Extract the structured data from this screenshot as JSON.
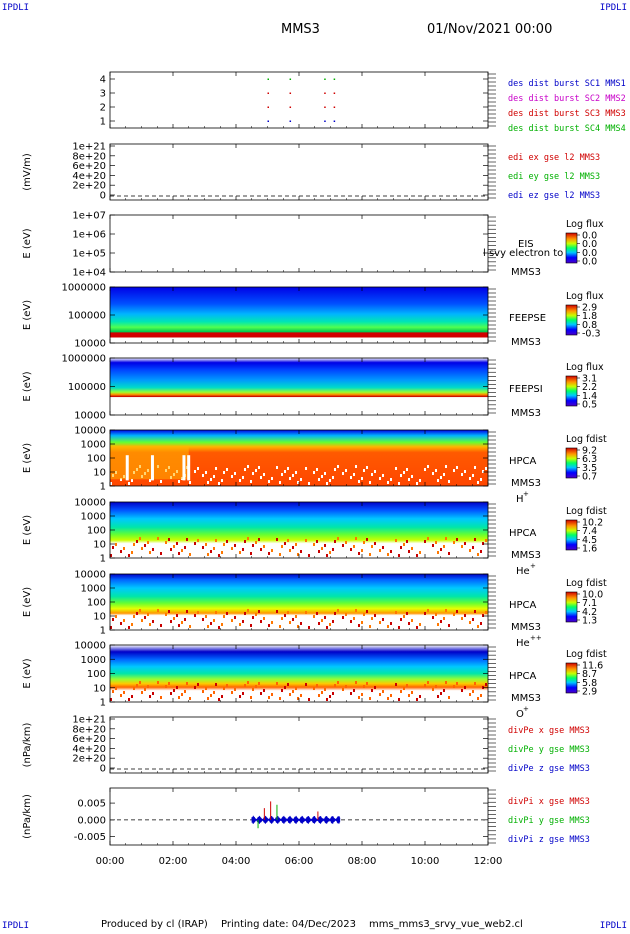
{
  "header": {
    "corner_left_top": "IPDLI",
    "corner_right_top": "IPDLI",
    "corner_left_bottom": "IPDLI",
    "corner_right_bottom": "IPDLI",
    "spacecraft": "MMS3",
    "date": "01/Nov/2021 00:00"
  },
  "footer": {
    "produced_by": "Produced by cl (IRAP)",
    "printing_date": "Printing date: 04/Dec/2023",
    "filename": "mms_mms3_srvy_vue_web2.cl"
  },
  "chart_data": {
    "type": "line",
    "x_ticks": [
      "00:00",
      "02:00",
      "04:00",
      "06:00",
      "08:00",
      "10:00",
      "12:00"
    ],
    "x_range_hours": [
      0,
      12
    ],
    "panels": [
      {
        "id": "burst",
        "type": "scatter",
        "y_ticks": [
          "4",
          "3",
          "2",
          "1"
        ],
        "y_range": [
          0.5,
          4.5
        ],
        "legend": [
          {
            "label": "des dist burst SC1 MMS1",
            "color": "#0000c8"
          },
          {
            "label": "des dist burst SC2 MMS2",
            "color": "#c800c8"
          },
          {
            "label": "des dist burst SC3 MMS3",
            "color": "#d00000"
          },
          {
            "label": "des dist burst SC4 MMS4",
            "color": "#00b000"
          }
        ],
        "points": [
          {
            "level": 4,
            "hours": [
              5.0,
              5.7,
              6.8,
              7.1
            ],
            "color": "#00b000"
          },
          {
            "level": 3,
            "hours": [
              5.0,
              5.7,
              6.8,
              7.1
            ],
            "color": "#d00000"
          },
          {
            "level": 2,
            "hours": [
              5.0,
              5.7,
              6.8,
              7.1
            ],
            "color": "#d00000"
          },
          {
            "level": 1,
            "hours": [
              5.0,
              5.7,
              6.8,
              7.1
            ],
            "color": "#0000c8"
          }
        ]
      },
      {
        "id": "edi",
        "type": "line",
        "ylabel": "(mV/m)",
        "y_ticks": [
          "1e+21",
          "8e+20",
          "6e+20",
          "4e+20",
          "2e+20",
          "0"
        ],
        "legend": [
          {
            "label": "edi ex gse l2 MMS3",
            "color": "#d00000"
          },
          {
            "label": "edi ey gse l2 MMS3",
            "color": "#00b000"
          },
          {
            "label": "edi ez gse l2 MMS3",
            "color": "#0000c8"
          }
        ]
      },
      {
        "id": "eis",
        "type": "heatmap",
        "ylabel": "E (eV)",
        "y_ticks": [
          "1e+07",
          "1e+06",
          "1e+05",
          "1e+04"
        ],
        "instrument": "EIS",
        "sc": "MMS3",
        "overlap_label": "l svy electron to",
        "cbar_title": "Log flux",
        "cbar_ticks": [
          "0.0",
          "0.0",
          "0.0",
          "0.0"
        ]
      },
      {
        "id": "feepse",
        "type": "heatmap",
        "ylabel": "E (eV)",
        "y_ticks": [
          "1000000",
          "100000",
          "10000"
        ],
        "instrument": "FEEPSE",
        "sc": "MMS3",
        "cbar_title": "Log flux",
        "cbar_ticks": [
          "2.9",
          "1.8",
          "0.8",
          "-0.3"
        ]
      },
      {
        "id": "feepsi",
        "type": "heatmap",
        "ylabel": "E (eV)",
        "y_ticks": [
          "1000000",
          "100000",
          "10000"
        ],
        "instrument": "FEEPSI",
        "sc": "MMS3",
        "cbar_title": "Log flux",
        "cbar_ticks": [
          "3.1",
          "2.2",
          "1.4",
          "0.5"
        ]
      },
      {
        "id": "hpca_h",
        "type": "heatmap",
        "ylabel": "E (eV)",
        "y_ticks": [
          "10000",
          "1000",
          "100",
          "10",
          "1"
        ],
        "instrument": "HPCA",
        "sc": "MMS3",
        "species": "H",
        "charge": "+",
        "cbar_title": "Log fdist",
        "cbar_ticks": [
          "9.2",
          "6.3",
          "3.5",
          "0.7"
        ]
      },
      {
        "id": "hpca_he",
        "type": "heatmap",
        "ylabel": "E (eV)",
        "y_ticks": [
          "10000",
          "1000",
          "100",
          "10",
          "1"
        ],
        "instrument": "HPCA",
        "sc": "MMS3",
        "species": "He",
        "charge": "+",
        "cbar_title": "Log fdist",
        "cbar_ticks": [
          "10.2",
          "7.4",
          "4.5",
          "1.6"
        ]
      },
      {
        "id": "hpca_hepp",
        "type": "heatmap",
        "ylabel": "E (eV)",
        "y_ticks": [
          "10000",
          "1000",
          "100",
          "10",
          "1"
        ],
        "instrument": "HPCA",
        "sc": "MMS3",
        "species": "He",
        "charge": "++",
        "cbar_title": "Log fdist",
        "cbar_ticks": [
          "10.0",
          "7.1",
          "4.2",
          "1.3"
        ]
      },
      {
        "id": "hpca_o",
        "type": "heatmap",
        "ylabel": "E (eV)",
        "y_ticks": [
          "10000",
          "1000",
          "100",
          "10",
          "1"
        ],
        "instrument": "HPCA",
        "sc": "MMS3",
        "species": "O",
        "charge": "+",
        "cbar_title": "Log fdist",
        "cbar_ticks": [
          "11.6",
          "8.7",
          "5.8",
          "2.9"
        ]
      },
      {
        "id": "divpe",
        "type": "line",
        "ylabel": "(nPa/km)",
        "y_ticks": [
          "1e+21",
          "8e+20",
          "6e+20",
          "4e+20",
          "2e+20",
          "0"
        ],
        "legend": [
          {
            "label": "divPe x gse MMS3",
            "color": "#d00000"
          },
          {
            "label": "divPe y gse MMS3",
            "color": "#00b000"
          },
          {
            "label": "divPe z gse MMS3",
            "color": "#0000c8"
          }
        ]
      },
      {
        "id": "divpi",
        "type": "line",
        "ylabel": "(nPa/km)",
        "y_ticks": [
          "0.005",
          "0.000",
          "-0.005"
        ],
        "y_range": [
          -0.0075,
          0.0095
        ],
        "legend": [
          {
            "label": "divPi x gse MMS3",
            "color": "#d00000"
          },
          {
            "label": "divPi y gse MMS3",
            "color": "#00b000"
          },
          {
            "label": "divPi z gse MMS3",
            "color": "#0000c8"
          }
        ],
        "data_interval_hours": [
          4.5,
          7.3
        ],
        "z_amplitude": 0.0012,
        "spikes": [
          {
            "hour": 5.1,
            "value": 0.0055,
            "color": "#d00000"
          },
          {
            "hour": 4.9,
            "value": 0.0035,
            "color": "#d00000"
          },
          {
            "hour": 5.3,
            "value": 0.0045,
            "color": "#00b000"
          },
          {
            "hour": 6.6,
            "value": 0.0025,
            "color": "#d00000"
          },
          {
            "hour": 4.7,
            "value": -0.0025,
            "color": "#00b000"
          }
        ]
      }
    ]
  }
}
